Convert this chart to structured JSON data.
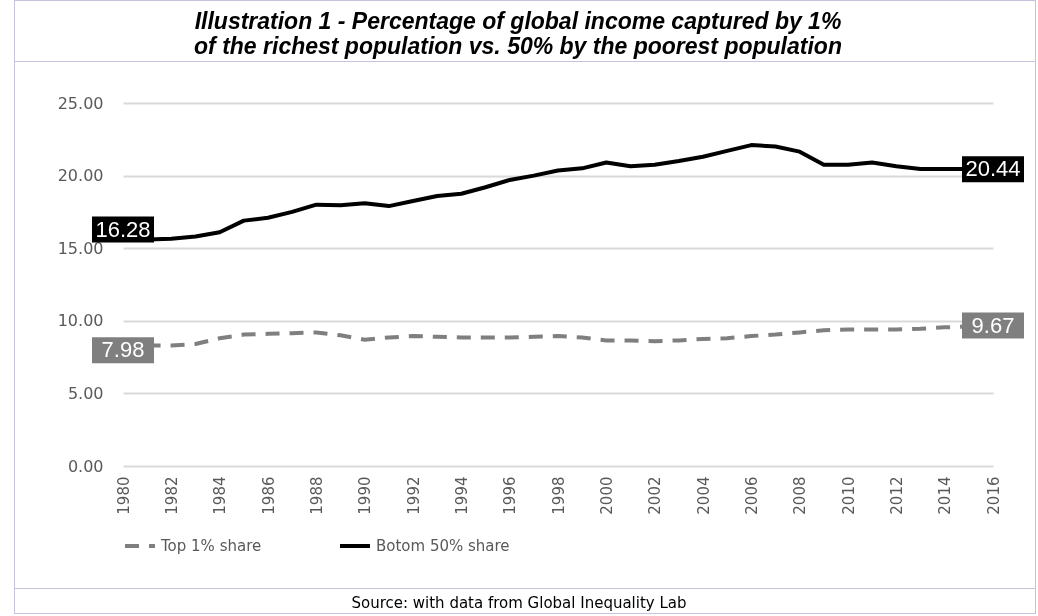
{
  "chart_data": {
    "type": "line",
    "title": "Illustration 1 - Percentage of global income captured by 1% of the richest population vs. 50% by the poorest population",
    "x": [
      1980,
      1981,
      1982,
      1983,
      1984,
      1985,
      1986,
      1987,
      1988,
      1989,
      1990,
      1991,
      1992,
      1993,
      1994,
      1995,
      1996,
      1997,
      1998,
      1999,
      2000,
      2001,
      2002,
      2003,
      2004,
      2005,
      2006,
      2007,
      2008,
      2009,
      2010,
      2011,
      2012,
      2013,
      2014,
      2015,
      2016
    ],
    "series": [
      {
        "name": "Top 1% share",
        "color": "#7f7f7f",
        "line_style": "dashed",
        "values": [
          7.98,
          8.3,
          8.3,
          8.4,
          8.8,
          9.05,
          9.1,
          9.15,
          9.2,
          9.0,
          8.7,
          8.85,
          8.95,
          8.9,
          8.85,
          8.85,
          8.85,
          8.9,
          8.95,
          8.85,
          8.65,
          8.65,
          8.6,
          8.65,
          8.75,
          8.8,
          8.95,
          9.05,
          9.2,
          9.35,
          9.4,
          9.4,
          9.4,
          9.45,
          9.55,
          9.6,
          9.67
        ],
        "value_labels": [
          "7.98",
          null,
          null,
          null,
          null,
          null,
          null,
          null,
          null,
          null,
          null,
          null,
          null,
          null,
          null,
          null,
          null,
          null,
          null,
          null,
          null,
          null,
          null,
          null,
          null,
          null,
          null,
          null,
          null,
          null,
          null,
          null,
          null,
          null,
          null,
          null,
          "9.67"
        ]
      },
      {
        "name": "Botom 50% share",
        "color": "#000000",
        "line_style": "solid",
        "values": [
          16.28,
          15.6,
          15.65,
          15.8,
          16.1,
          16.9,
          17.1,
          17.5,
          18.0,
          17.95,
          18.1,
          17.9,
          18.25,
          18.6,
          18.75,
          19.2,
          19.7,
          20.0,
          20.35,
          20.5,
          20.9,
          20.65,
          20.75,
          21.0,
          21.3,
          21.7,
          22.1,
          22.0,
          21.65,
          20.75,
          20.75,
          20.9,
          20.65,
          20.45,
          20.45,
          20.45,
          20.44
        ],
        "value_labels": [
          "16.28",
          null,
          null,
          null,
          null,
          null,
          null,
          null,
          null,
          null,
          null,
          null,
          null,
          null,
          null,
          null,
          null,
          null,
          null,
          null,
          null,
          null,
          null,
          null,
          null,
          null,
          null,
          null,
          null,
          null,
          null,
          null,
          null,
          null,
          null,
          null,
          "20.44"
        ]
      }
    ],
    "xlim": [
      1980,
      2016
    ],
    "xticks": [
      1980,
      1982,
      1984,
      1986,
      1988,
      1990,
      1992,
      1994,
      1996,
      1998,
      2000,
      2002,
      2004,
      2006,
      2008,
      2010,
      2012,
      2014,
      2016
    ],
    "ylim": [
      0,
      25
    ],
    "yticks": [
      {
        "value": 0,
        "label": "0.00"
      },
      {
        "value": 5,
        "label": "5.00"
      },
      {
        "value": 10,
        "label": "10.00"
      },
      {
        "value": 15,
        "label": "15.00"
      },
      {
        "value": 20,
        "label": "20.00"
      },
      {
        "value": 25,
        "label": "25.00"
      }
    ],
    "grid": "y",
    "legend": "bottom",
    "annotations": [
      "Source: with data from Global Inequality Lab"
    ]
  }
}
